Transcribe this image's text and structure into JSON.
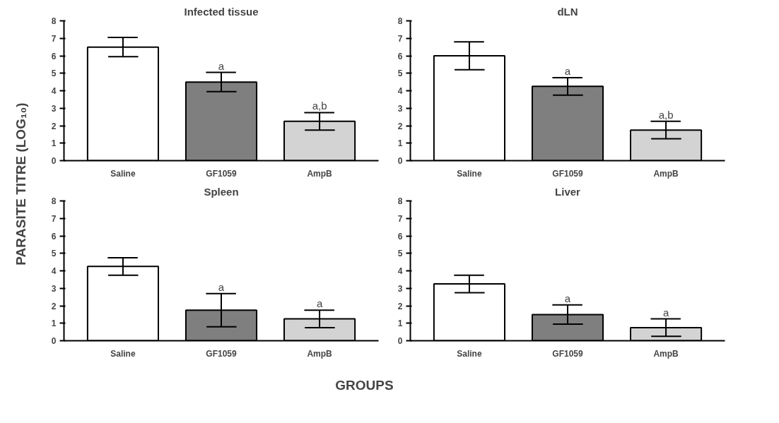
{
  "chart_data": [
    {
      "type": "bar",
      "title": "Infected tissue",
      "ylabel": "PARASITE TITRE (LOG₁₀)",
      "xlabel": "GROUPS",
      "categories": [
        "Saline",
        "GF1059",
        "AmpB"
      ],
      "values": [
        6.5,
        4.5,
        2.25
      ],
      "errors": [
        0.55,
        0.55,
        0.5
      ],
      "colors": [
        "#ffffff",
        "#7f7f7f",
        "#d3d3d3"
      ],
      "ylim": [
        0,
        8
      ],
      "yticks": [
        0,
        1,
        2,
        3,
        4,
        5,
        6,
        7,
        8
      ],
      "annotations": [
        {
          "text": "a",
          "x": "GF1059",
          "y": 4.5
        },
        {
          "text": "a,b",
          "x": "AmpB",
          "y": 2.25
        }
      ]
    },
    {
      "type": "bar",
      "title": "dLN",
      "categories": [
        "Saline",
        "GF1059",
        "AmpB"
      ],
      "values": [
        6.0,
        4.25,
        1.75
      ],
      "errors": [
        0.8,
        0.5,
        0.5
      ],
      "colors": [
        "#ffffff",
        "#7f7f7f",
        "#d3d3d3"
      ],
      "ylim": [
        0,
        8
      ],
      "yticks": [
        0,
        1,
        2,
        3,
        4,
        5,
        6,
        7,
        8
      ],
      "annotations": [
        {
          "text": "a",
          "x": "GF1059",
          "y": 4.25
        },
        {
          "text": "a,b",
          "x": "AmpB",
          "y": 1.75
        }
      ]
    },
    {
      "type": "bar",
      "title": "Spleen",
      "categories": [
        "Saline",
        "GF1059",
        "AmpB"
      ],
      "values": [
        4.25,
        1.75,
        1.25
      ],
      "errors": [
        0.5,
        0.95,
        0.5
      ],
      "colors": [
        "#ffffff",
        "#7f7f7f",
        "#d3d3d3"
      ],
      "ylim": [
        0,
        8
      ],
      "yticks": [
        0,
        1,
        2,
        3,
        4,
        5,
        6,
        7,
        8
      ],
      "annotations": [
        {
          "text": "a",
          "x": "GF1059",
          "y": 1.75
        },
        {
          "text": "a",
          "x": "AmpB",
          "y": 1.25
        }
      ]
    },
    {
      "type": "bar",
      "title": "Liver",
      "categories": [
        "Saline",
        "GF1059",
        "AmpB"
      ],
      "values": [
        3.25,
        1.5,
        0.75
      ],
      "errors": [
        0.5,
        0.55,
        0.5
      ],
      "colors": [
        "#ffffff",
        "#7f7f7f",
        "#d3d3d3"
      ],
      "ylim": [
        0,
        8
      ],
      "yticks": [
        0,
        1,
        2,
        3,
        4,
        5,
        6,
        7,
        8
      ],
      "annotations": [
        {
          "text": "a",
          "x": "GF1059",
          "y": 1.5
        },
        {
          "text": "a",
          "x": "AmpB",
          "y": 0.75
        }
      ]
    }
  ]
}
